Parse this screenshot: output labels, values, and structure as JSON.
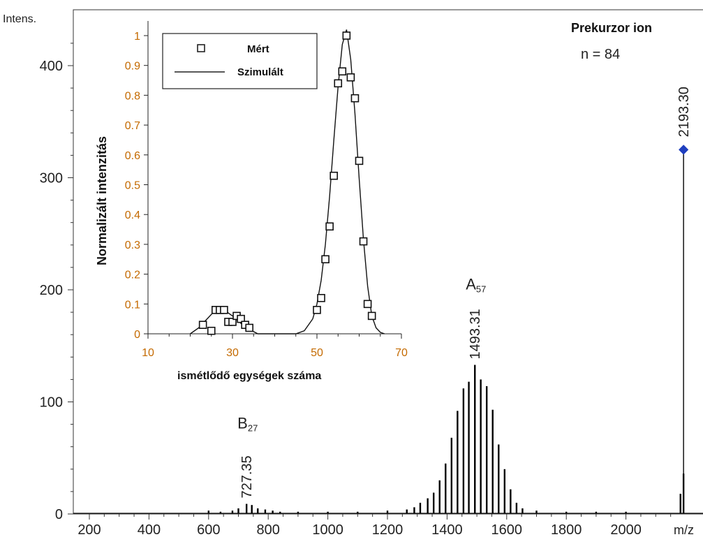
{
  "chart_data": [
    {
      "type": "bar",
      "title": "",
      "xlabel": "m/z",
      "ylabel": "Intens.",
      "xlim": [
        200,
        2200
      ],
      "ylim": [
        0,
        440
      ],
      "xticks": [
        200,
        400,
        600,
        800,
        1000,
        1200,
        1400,
        1600,
        1800,
        2000
      ],
      "yticks": [
        0,
        100,
        200,
        300,
        400
      ],
      "peaks": [
        {
          "x": 600,
          "y": 3
        },
        {
          "x": 640,
          "y": 2
        },
        {
          "x": 680,
          "y": 3
        },
        {
          "x": 700,
          "y": 5
        },
        {
          "x": 727.35,
          "y": 9
        },
        {
          "x": 745,
          "y": 8
        },
        {
          "x": 765,
          "y": 5
        },
        {
          "x": 790,
          "y": 4
        },
        {
          "x": 815,
          "y": 3
        },
        {
          "x": 840,
          "y": 2
        },
        {
          "x": 900,
          "y": 2
        },
        {
          "x": 1000,
          "y": 2
        },
        {
          "x": 1100,
          "y": 2
        },
        {
          "x": 1200,
          "y": 3
        },
        {
          "x": 1265,
          "y": 4
        },
        {
          "x": 1290,
          "y": 6
        },
        {
          "x": 1310,
          "y": 10
        },
        {
          "x": 1335,
          "y": 14
        },
        {
          "x": 1355,
          "y": 19
        },
        {
          "x": 1375,
          "y": 30
        },
        {
          "x": 1395,
          "y": 45
        },
        {
          "x": 1415,
          "y": 68
        },
        {
          "x": 1435,
          "y": 92
        },
        {
          "x": 1455,
          "y": 112
        },
        {
          "x": 1473,
          "y": 118
        },
        {
          "x": 1493.31,
          "y": 133
        },
        {
          "x": 1513,
          "y": 120
        },
        {
          "x": 1533,
          "y": 114
        },
        {
          "x": 1553,
          "y": 93
        },
        {
          "x": 1573,
          "y": 62
        },
        {
          "x": 1593,
          "y": 40
        },
        {
          "x": 1613,
          "y": 22
        },
        {
          "x": 1633,
          "y": 10
        },
        {
          "x": 1653,
          "y": 5
        },
        {
          "x": 1700,
          "y": 3
        },
        {
          "x": 1800,
          "y": 2
        },
        {
          "x": 1900,
          "y": 2
        },
        {
          "x": 2000,
          "y": 2
        },
        {
          "x": 2183,
          "y": 18
        },
        {
          "x": 2193.3,
          "y": 36
        }
      ],
      "annotations": [
        {
          "x": 727.35,
          "y": 9,
          "text": "727.35",
          "ion": "B",
          "ion_sub": "27"
        },
        {
          "x": 1493.31,
          "y": 133,
          "text": "1493.31",
          "ion": "A",
          "ion_sub": "57"
        }
      ],
      "precursor": {
        "x": 2193.3,
        "y": 325,
        "label": "2193.30",
        "title": "Prekurzor ion",
        "n_text": "n = 84",
        "marker_color": "#1f3fbf"
      }
    },
    {
      "type": "scatter",
      "title": "",
      "xlabel": "ismétlődő egységek száma",
      "ylabel": "Normalizált intenzitás",
      "xlim": [
        10,
        70
      ],
      "ylim": [
        0,
        1.05
      ],
      "xticks": [
        10,
        30,
        50,
        70
      ],
      "yticks": [
        0,
        0.1,
        0.2,
        0.3,
        0.4,
        0.5,
        0.6,
        0.7,
        0.8,
        0.9,
        1
      ],
      "tick_color": "#c46a00",
      "legend": {
        "position": "top-left",
        "entries": [
          "Mért",
          "Szimulált"
        ]
      },
      "series": [
        {
          "name": "Mért",
          "marker": "open-square",
          "x": [
            23,
            25,
            26,
            27,
            28,
            29,
            30,
            31,
            32,
            33,
            34,
            50,
            51,
            52,
            53,
            54,
            55,
            56,
            57,
            58,
            59,
            60,
            61,
            62,
            63
          ],
          "y": [
            0.03,
            0.01,
            0.08,
            0.08,
            0.08,
            0.04,
            0.04,
            0.06,
            0.05,
            0.03,
            0.02,
            0.08,
            0.12,
            0.25,
            0.36,
            0.53,
            0.84,
            0.88,
            1.0,
            0.86,
            0.79,
            0.58,
            0.31,
            0.1,
            0.06
          ]
        },
        {
          "name": "Szimulált",
          "line": "solid",
          "x": [
            20,
            22,
            24,
            26,
            27,
            28,
            30,
            32,
            34,
            36,
            40,
            45,
            47,
            49,
            50,
            51,
            52,
            53,
            54,
            55,
            56,
            57,
            58,
            59,
            60,
            61,
            62,
            63,
            64,
            65,
            66
          ],
          "y": [
            0,
            0.02,
            0.05,
            0.08,
            0.085,
            0.08,
            0.06,
            0.035,
            0.015,
            0,
            0,
            0,
            0.01,
            0.05,
            0.1,
            0.18,
            0.3,
            0.46,
            0.65,
            0.83,
            0.97,
            1.02,
            0.92,
            0.74,
            0.52,
            0.32,
            0.16,
            0.06,
            0.02,
            0.005,
            0
          ]
        }
      ]
    }
  ]
}
